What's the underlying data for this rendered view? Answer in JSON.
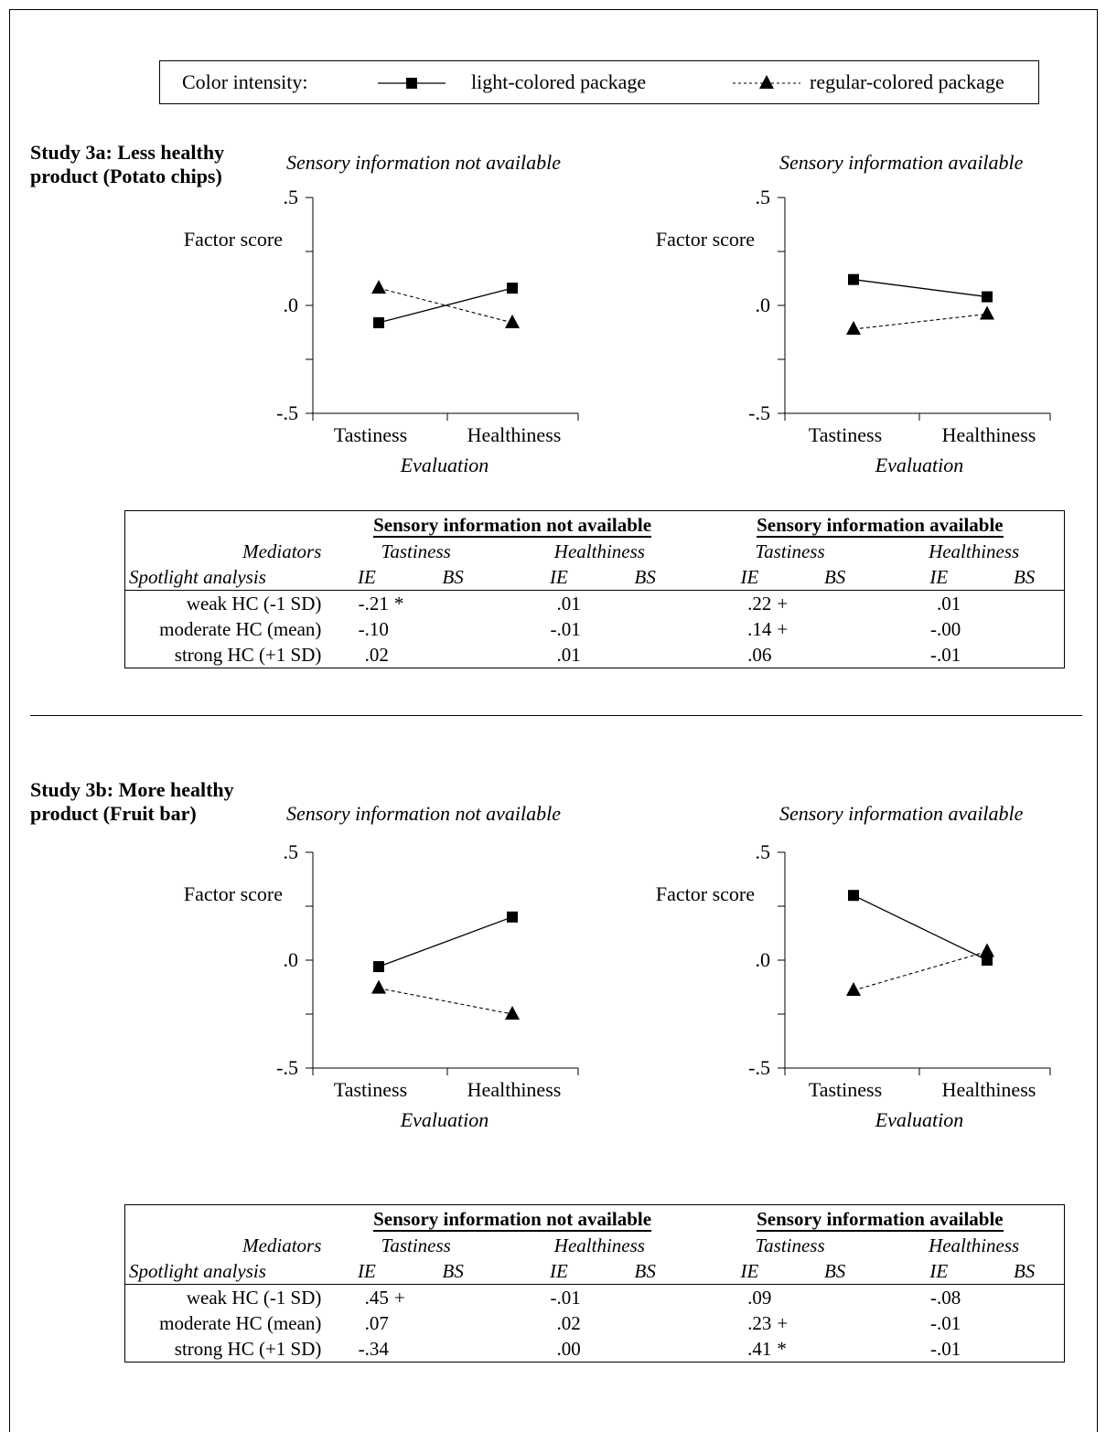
{
  "legend": {
    "label": "Color intensity:",
    "light": "light-colored package",
    "regular": "regular-colored package"
  },
  "studies": [
    {
      "title": "Study 3a: Less healthy\nproduct (Potato chips)",
      "panels": [
        {
          "title": "Sensory information not available"
        },
        {
          "title": "Sensory information available"
        }
      ],
      "table": {
        "groups": [
          "Sensory information not available",
          "Sensory information available"
        ],
        "mediators_label": "Mediators",
        "spotlight_label": "Spotlight analysis",
        "sub": [
          "Tastiness",
          "Healthiness",
          "Tastiness",
          "Healthiness"
        ],
        "ie": "IE",
        "bs": "BS",
        "rows": [
          {
            "label": "weak HC (-1 SD)",
            "v": [
              ".21",
              ".01",
              ".22",
              ".01"
            ],
            "neg": [
              true,
              false,
              false,
              false
            ],
            "sig": [
              "*",
              "",
              "+",
              ""
            ]
          },
          {
            "label": "moderate HC (mean)",
            "v": [
              "-.10",
              "-.01",
              ".14",
              "-.00"
            ],
            "neg": [
              false,
              false,
              false,
              false
            ],
            "sig": [
              "",
              "",
              "+",
              ""
            ]
          },
          {
            "label": "strong HC (+1 SD)",
            "v": [
              ".02",
              ".01",
              ".06",
              "-.01"
            ],
            "neg": [
              false,
              false,
              false,
              false
            ],
            "sig": [
              "",
              "",
              "",
              ""
            ]
          }
        ]
      }
    },
    {
      "title": "Study 3b: More healthy\nproduct (Fruit bar)",
      "panels": [
        {
          "title": "Sensory information not available"
        },
        {
          "title": "Sensory information available"
        }
      ],
      "table": {
        "groups": [
          "Sensory information not available",
          "Sensory information available"
        ],
        "mediators_label": "Mediators",
        "spotlight_label": "Spotlight analysis",
        "sub": [
          "Tastiness",
          "Healthiness",
          "Tastiness",
          "Healthiness"
        ],
        "ie": "IE",
        "bs": "BS",
        "rows": [
          {
            "label": "weak HC (-1 SD)",
            "v": [
              ".45",
              "-.01",
              ".09",
              "-.08"
            ],
            "neg": [
              false,
              false,
              false,
              false
            ],
            "sig": [
              "+",
              "",
              "",
              ""
            ]
          },
          {
            "label": "moderate HC (mean)",
            "v": [
              ".07",
              ".02",
              ".23",
              "-.01"
            ],
            "neg": [
              false,
              false,
              false,
              false
            ],
            "sig": [
              "",
              "",
              "+",
              ""
            ]
          },
          {
            "label": "strong HC (+1 SD)",
            "v": [
              "-.34",
              ".00",
              ".41",
              "-.01"
            ],
            "neg": [
              false,
              false,
              false,
              false
            ],
            "sig": [
              "",
              "",
              "*",
              ""
            ]
          }
        ]
      }
    }
  ],
  "chart_data": [
    {
      "type": "line",
      "study": "3a",
      "panel": "Sensory information not available",
      "categories": [
        "Tastiness",
        "Healthiness"
      ],
      "ylim": [
        -0.5,
        0.5
      ],
      "yticks": [
        ".5",
        ".0",
        "-.5"
      ],
      "ylabel": "Factor score",
      "xlabel": "Evaluation",
      "series": [
        {
          "name": "light-colored package",
          "values": [
            -0.08,
            0.08
          ],
          "style": "solid",
          "marker": "square"
        },
        {
          "name": "regular-colored package",
          "values": [
            0.08,
            -0.08
          ],
          "style": "dashed",
          "marker": "triangle"
        }
      ]
    },
    {
      "type": "line",
      "study": "3a",
      "panel": "Sensory information available",
      "categories": [
        "Tastiness",
        "Healthiness"
      ],
      "ylim": [
        -0.5,
        0.5
      ],
      "yticks": [
        ".5",
        ".0",
        "-.5"
      ],
      "ylabel": "Factor score",
      "xlabel": "Evaluation",
      "series": [
        {
          "name": "light-colored package",
          "values": [
            0.12,
            0.04
          ],
          "style": "solid",
          "marker": "square"
        },
        {
          "name": "regular-colored package",
          "values": [
            -0.11,
            -0.04
          ],
          "style": "dashed",
          "marker": "triangle"
        }
      ]
    },
    {
      "type": "line",
      "study": "3b",
      "panel": "Sensory information not available",
      "categories": [
        "Tastiness",
        "Healthiness"
      ],
      "ylim": [
        -0.5,
        0.5
      ],
      "yticks": [
        ".5",
        ".0",
        "-.5"
      ],
      "ylabel": "Factor score",
      "xlabel": "Evaluation",
      "series": [
        {
          "name": "light-colored package",
          "values": [
            -0.03,
            0.2
          ],
          "style": "solid",
          "marker": "square"
        },
        {
          "name": "regular-colored package",
          "values": [
            -0.13,
            -0.25
          ],
          "style": "dashed",
          "marker": "triangle"
        }
      ]
    },
    {
      "type": "line",
      "study": "3b",
      "panel": "Sensory information available",
      "categories": [
        "Tastiness",
        "Healthiness"
      ],
      "ylim": [
        -0.5,
        0.5
      ],
      "yticks": [
        ".5",
        ".0",
        "-.5"
      ],
      "ylabel": "Factor score",
      "xlabel": "Evaluation",
      "series": [
        {
          "name": "light-colored package",
          "values": [
            0.3,
            0.0
          ],
          "style": "solid",
          "marker": "square"
        },
        {
          "name": "regular-colored package",
          "values": [
            -0.14,
            0.04
          ],
          "style": "dashed",
          "marker": "triangle"
        }
      ]
    }
  ]
}
